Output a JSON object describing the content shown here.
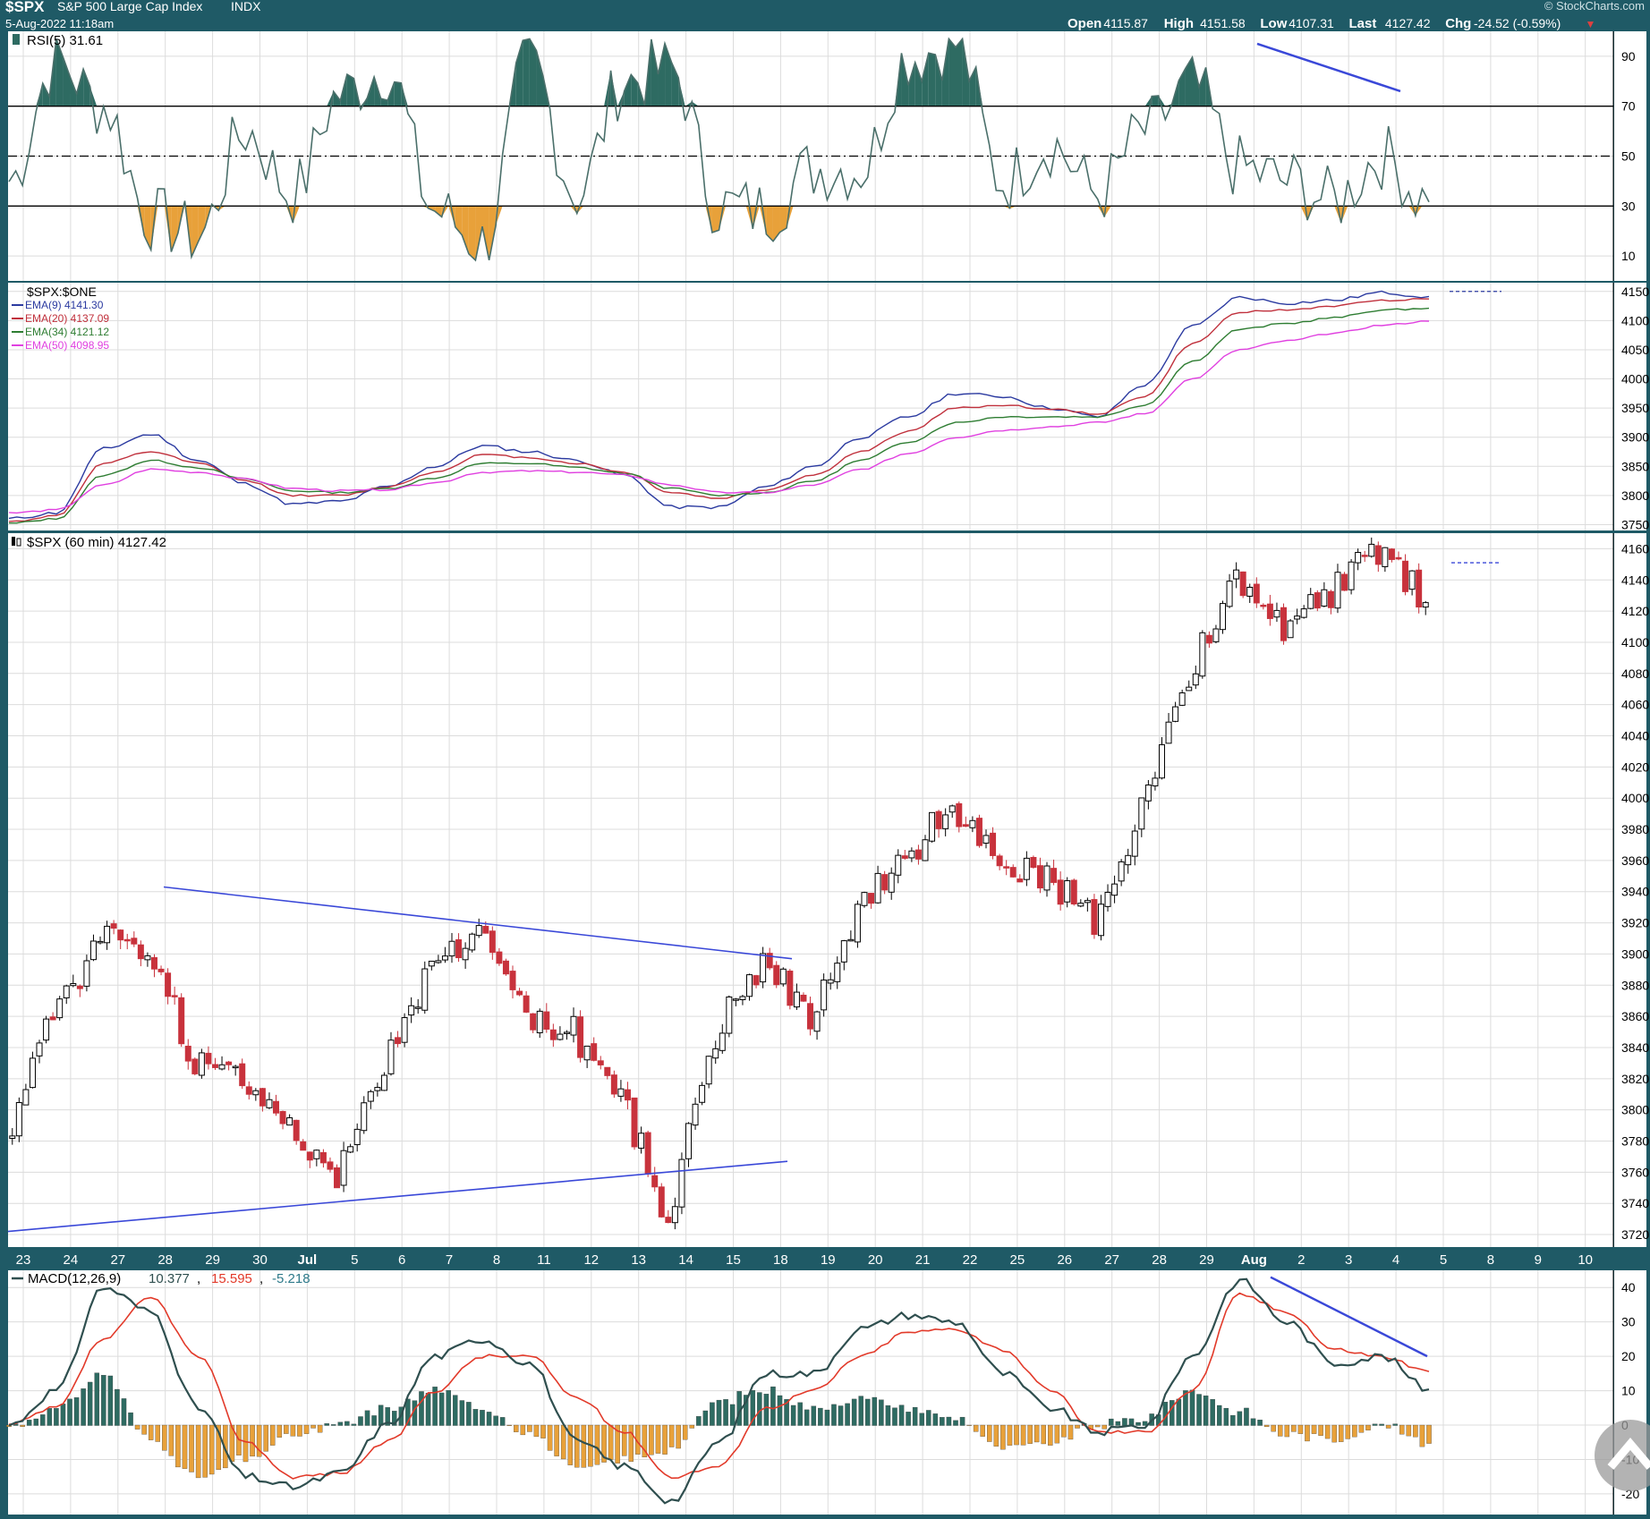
{
  "header": {
    "symbol": "$SPX",
    "name": "S&P 500 Large Cap Index",
    "exchange": "INDX",
    "datetime": "5-Aug-2022 11:18am",
    "brand": "© StockCharts.com",
    "quote": [
      {
        "label": "Open",
        "value": "4115.87"
      },
      {
        "label": "High",
        "value": "4151.58"
      },
      {
        "label": "Low",
        "value": "4107.31"
      },
      {
        "label": "Last",
        "value": "4127.42"
      },
      {
        "label": "Chg",
        "value": "-24.52 (-0.59%)"
      }
    ],
    "chg_arrow": "▼"
  },
  "colors": {
    "bg_outer": "#1f5a66",
    "panel": "#ffffff",
    "grid": "#dcdcdc",
    "up_fill": "#ffffff",
    "down_fill": "#c8323c",
    "rsi_fill_high": "#2e6b62",
    "rsi_fill_low": "#e8a13a",
    "ema9": "#2b3aa0",
    "ema20": "#c0303c",
    "ema34": "#2e7d32",
    "ema50": "#e040e0",
    "trend": "#3a48d8",
    "macd_line": "#2f4f4f",
    "macd_signal": "#e23a2a"
  },
  "x_labels": [
    "23",
    "24",
    "27",
    "28",
    "29",
    "30",
    "Jul",
    "5",
    "6",
    "7",
    "8",
    "11",
    "12",
    "13",
    "14",
    "15",
    "18",
    "19",
    "20",
    "21",
    "22",
    "25",
    "26",
    "27",
    "28",
    "29",
    "Aug",
    "2",
    "3",
    "4",
    "5",
    "8",
    "9",
    "10"
  ],
  "rsi": {
    "label": "RSI(5) 31.61",
    "ticks": [
      "90",
      "70",
      "50",
      "30",
      "10"
    ],
    "levels": [
      70,
      50,
      30
    ],
    "range": [
      0,
      100
    ],
    "last": 31.61
  },
  "ema": {
    "title": "$SPX:$ONE",
    "legend": [
      {
        "text": "EMA(9) 4141.30",
        "color": "#2b3aa0"
      },
      {
        "text": "EMA(20) 4137.09",
        "color": "#c0303c"
      },
      {
        "text": "EMA(34) 4121.12",
        "color": "#2e7d32"
      },
      {
        "text": "EMA(50) 4098.95",
        "color": "#e040e0"
      }
    ],
    "ticks": [
      "4150",
      "4100",
      "4050",
      "4000",
      "3950",
      "3900",
      "3850",
      "3800",
      "3750"
    ],
    "range": [
      3740,
      4165
    ]
  },
  "price": {
    "label": "$SPX (60 min) 4127.42",
    "ticks": [
      "4160",
      "4140",
      "4120",
      "4100",
      "4080",
      "4060",
      "4040",
      "4020",
      "4000",
      "3980",
      "3960",
      "3940",
      "3920",
      "3900",
      "3880",
      "3860",
      "3840",
      "3820",
      "3800",
      "3780",
      "3760",
      "3740",
      "3720"
    ],
    "range": [
      3712,
      4170
    ],
    "last": 4127.42
  },
  "macd": {
    "label": "MACD(12,26,9)",
    "values": [
      "10.377",
      "15.595",
      "-5.218"
    ],
    "ticks": [
      "40",
      "30",
      "20",
      "10",
      "0",
      "-10",
      "-20"
    ],
    "range": [
      -26,
      45
    ]
  },
  "chart_data": [
    {
      "type": "line",
      "title": "RSI(5) 31.61",
      "x": [
        "23",
        "24",
        "27",
        "28",
        "29",
        "30",
        "Jul",
        "5",
        "6",
        "7",
        "8",
        "11",
        "12",
        "13",
        "14",
        "15",
        "18",
        "19",
        "20",
        "21",
        "22",
        "25",
        "26",
        "27",
        "28",
        "29",
        "Aug",
        "2",
        "3",
        "4",
        "5"
      ],
      "series": [
        {
          "name": "RSI(5)",
          "values": [
            40,
            88,
            70,
            25,
            18,
            60,
            35,
            75,
            85,
            28,
            15,
            88,
            35,
            80,
            85,
            30,
            28,
            45,
            45,
            90,
            95,
            40,
            55,
            35,
            60,
            78,
            45,
            40,
            32,
            50,
            31.6
          ]
        }
      ],
      "ylim": [
        0,
        100
      ]
    },
    {
      "type": "line",
      "title": "$SPX:$ONE",
      "x": [
        "23",
        "24",
        "27",
        "28",
        "29",
        "30",
        "Jul",
        "5",
        "6",
        "7",
        "8",
        "11",
        "12",
        "13",
        "14",
        "15",
        "18",
        "19",
        "20",
        "21",
        "22",
        "25",
        "26",
        "27",
        "28",
        "29",
        "Aug",
        "2",
        "3",
        "4",
        "5"
      ],
      "series": [
        {
          "name": "EMA(9) 4141.30",
          "values": [
            3760,
            3770,
            3880,
            3905,
            3860,
            3820,
            3785,
            3790,
            3815,
            3850,
            3885,
            3875,
            3860,
            3835,
            3780,
            3780,
            3815,
            3850,
            3900,
            3935,
            3975,
            3970,
            3950,
            3935,
            3990,
            4090,
            4140,
            4130,
            4135,
            4148,
            4141.3
          ]
        },
        {
          "name": "EMA(20) 4137.09",
          "values": [
            3755,
            3765,
            3855,
            3875,
            3855,
            3825,
            3800,
            3800,
            3815,
            3840,
            3870,
            3865,
            3855,
            3840,
            3805,
            3795,
            3810,
            3835,
            3875,
            3910,
            3950,
            3955,
            3948,
            3940,
            3970,
            4060,
            4115,
            4118,
            4125,
            4135,
            4137.09
          ]
        },
        {
          "name": "EMA(34) 4121.12",
          "values": [
            3752,
            3760,
            3835,
            3860,
            3848,
            3828,
            3808,
            3805,
            3812,
            3830,
            3855,
            3855,
            3848,
            3838,
            3812,
            3800,
            3805,
            3825,
            3860,
            3892,
            3925,
            3935,
            3935,
            3935,
            3955,
            4030,
            4085,
            4095,
            4105,
            4118,
            4121.12
          ]
        },
        {
          "name": "EMA(50) 4098.95",
          "values": [
            3770,
            3775,
            3818,
            3845,
            3840,
            3828,
            3812,
            3808,
            3810,
            3822,
            3840,
            3842,
            3840,
            3835,
            3818,
            3805,
            3805,
            3818,
            3845,
            3872,
            3900,
            3912,
            3918,
            3925,
            3940,
            4000,
            4050,
            4065,
            4078,
            4092,
            4098.95
          ]
        }
      ],
      "ylim": [
        3740,
        4165
      ]
    },
    {
      "type": "line",
      "title": "$SPX (60 min) 4127.42",
      "x": [
        "23",
        "24",
        "27",
        "28",
        "29",
        "30",
        "Jul",
        "5",
        "6",
        "7",
        "8",
        "11",
        "12",
        "13",
        "14",
        "15",
        "18",
        "19",
        "20",
        "21",
        "22",
        "25",
        "26",
        "27",
        "28",
        "29",
        "Aug",
        "2",
        "3",
        "4",
        "5"
      ],
      "series": [
        {
          "name": "$SPX",
          "values": [
            3780,
            3860,
            3910,
            3905,
            3830,
            3820,
            3790,
            3760,
            3830,
            3890,
            3915,
            3860,
            3850,
            3810,
            3730,
            3850,
            3895,
            3860,
            3930,
            3960,
            3995,
            3960,
            3950,
            3920,
            3990,
            4080,
            4140,
            4110,
            4130,
            4160,
            4127.42
          ]
        }
      ],
      "ylim": [
        3712,
        4170
      ]
    },
    {
      "type": "line",
      "title": "MACD(12,26,9) 10.377, 15.595, -5.218",
      "x": [
        "23",
        "24",
        "27",
        "28",
        "29",
        "30",
        "Jul",
        "5",
        "6",
        "7",
        "8",
        "11",
        "12",
        "13",
        "14",
        "15",
        "18",
        "19",
        "20",
        "21",
        "22",
        "25",
        "26",
        "27",
        "28",
        "29",
        "Aug",
        "2",
        "3",
        "4",
        "5"
      ],
      "series": [
        {
          "name": "MACD",
          "values": [
            0,
            10,
            40,
            33,
            5,
            -15,
            -18,
            -14,
            0,
            20,
            25,
            18,
            -5,
            -12,
            -22,
            -5,
            15,
            15,
            28,
            32,
            30,
            15,
            5,
            -2,
            0,
            20,
            42,
            30,
            18,
            20,
            10.377
          ]
        },
        {
          "name": "Signal",
          "values": [
            0,
            5,
            25,
            37,
            20,
            -5,
            -15,
            -14,
            -5,
            10,
            20,
            20,
            8,
            -2,
            -15,
            -12,
            5,
            10,
            20,
            27,
            28,
            22,
            10,
            -2,
            -2,
            10,
            38,
            33,
            22,
            20,
            15.595
          ]
        }
      ],
      "ylim": [
        -26,
        45
      ]
    }
  ]
}
